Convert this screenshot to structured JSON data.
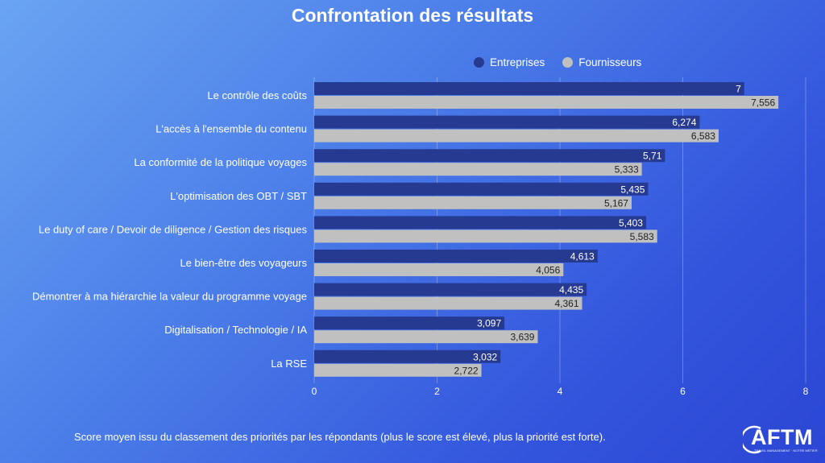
{
  "title": "Confrontation des résultats",
  "footnote": "Score moyen issu du classement des priorités par les répondants (plus le score est élevé, plus la priorité est forte).",
  "logo": {
    "text": "AFTM",
    "subtitle": "TRAVEL MANAGEMENT · NOTRE MÉTIER"
  },
  "colors": {
    "entreprises": "#263a92",
    "fournisseurs": "#c0c0c0",
    "label_dark": "#222222"
  },
  "chart_data": {
    "type": "bar",
    "orientation": "horizontal",
    "title": "Confrontation des résultats",
    "categories": [
      "Le contrôle des coûts",
      "L'accès à l'ensemble du contenu",
      "La conformité de la politique voyages",
      "L'optimisation des OBT / SBT",
      "Le duty of care / Devoir de diligence / Gestion des risques",
      "Le bien-être des voyageurs",
      "Démontrer à ma hiérarchie la valeur du programme voyage",
      "Digitalisation / Technologie / IA",
      "La RSE"
    ],
    "series": [
      {
        "name": "Entreprises",
        "values": [
          7,
          6.274,
          5.71,
          5.435,
          5.403,
          4.613,
          4.435,
          3.097,
          3.032
        ],
        "labels": [
          "7",
          "6,274",
          "5,71",
          "5,435",
          "5,403",
          "4,613",
          "4,435",
          "3,097",
          "3,032"
        ]
      },
      {
        "name": "Fournisseurs",
        "values": [
          7.556,
          6.583,
          5.333,
          5.167,
          5.583,
          4.056,
          4.361,
          3.639,
          2.722
        ],
        "labels": [
          "7,556",
          "6,583",
          "5,333",
          "5,167",
          "5,583",
          "4,056",
          "4,361",
          "3,639",
          "2,722"
        ]
      }
    ],
    "xlim": [
      0,
      8
    ],
    "xticks": [
      "0",
      "2",
      "4",
      "6",
      "8"
    ],
    "xlabel": "",
    "ylabel": "",
    "grid": true,
    "legend_position": "top-right"
  }
}
